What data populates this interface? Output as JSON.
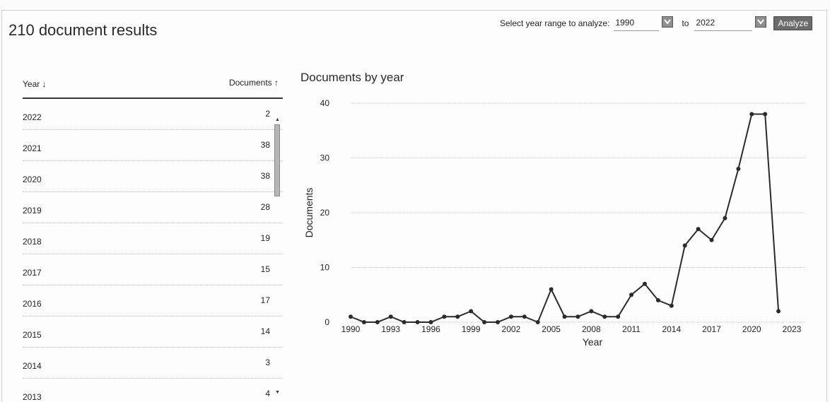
{
  "header": {
    "results_title": "210 document results",
    "range_label": "Select year range to analyze:",
    "from_year": "1990",
    "to_label": "to",
    "to_year": "2022",
    "analyze_label": "Analyze"
  },
  "table": {
    "col_year": "Year ↓",
    "col_docs": "Documents ↑",
    "rows": [
      {
        "year": "2022",
        "count": "2"
      },
      {
        "year": "2021",
        "count": "38"
      },
      {
        "year": "2020",
        "count": "38"
      },
      {
        "year": "2019",
        "count": "28"
      },
      {
        "year": "2018",
        "count": "19"
      },
      {
        "year": "2017",
        "count": "15"
      },
      {
        "year": "2016",
        "count": "17"
      },
      {
        "year": "2015",
        "count": "14"
      },
      {
        "year": "2014",
        "count": "3"
      },
      {
        "year": "2013",
        "count": "4"
      }
    ]
  },
  "chart_data": {
    "type": "line",
    "title": "Documents by year",
    "xlabel": "Year",
    "ylabel": "Documents",
    "xlim": [
      1990,
      2023
    ],
    "ylim": [
      0,
      40
    ],
    "x_ticks": [
      1990,
      1993,
      1996,
      1999,
      2002,
      2005,
      2008,
      2011,
      2014,
      2017,
      2020,
      2023
    ],
    "y_ticks": [
      0,
      10,
      20,
      30,
      40
    ],
    "grid": true,
    "line_color": "#2b2b2b",
    "x": [
      1990,
      1991,
      1992,
      1993,
      1994,
      1995,
      1996,
      1997,
      1998,
      1999,
      2000,
      2001,
      2002,
      2003,
      2004,
      2005,
      2006,
      2007,
      2008,
      2009,
      2010,
      2011,
      2012,
      2013,
      2014,
      2015,
      2016,
      2017,
      2018,
      2019,
      2020,
      2021,
      2022
    ],
    "y": [
      1,
      0,
      0,
      1,
      0,
      0,
      0,
      1,
      1,
      2,
      0,
      0,
      1,
      1,
      0,
      6,
      1,
      1,
      2,
      1,
      1,
      5,
      7,
      4,
      3,
      14,
      17,
      15,
      19,
      28,
      38,
      38,
      2
    ]
  }
}
